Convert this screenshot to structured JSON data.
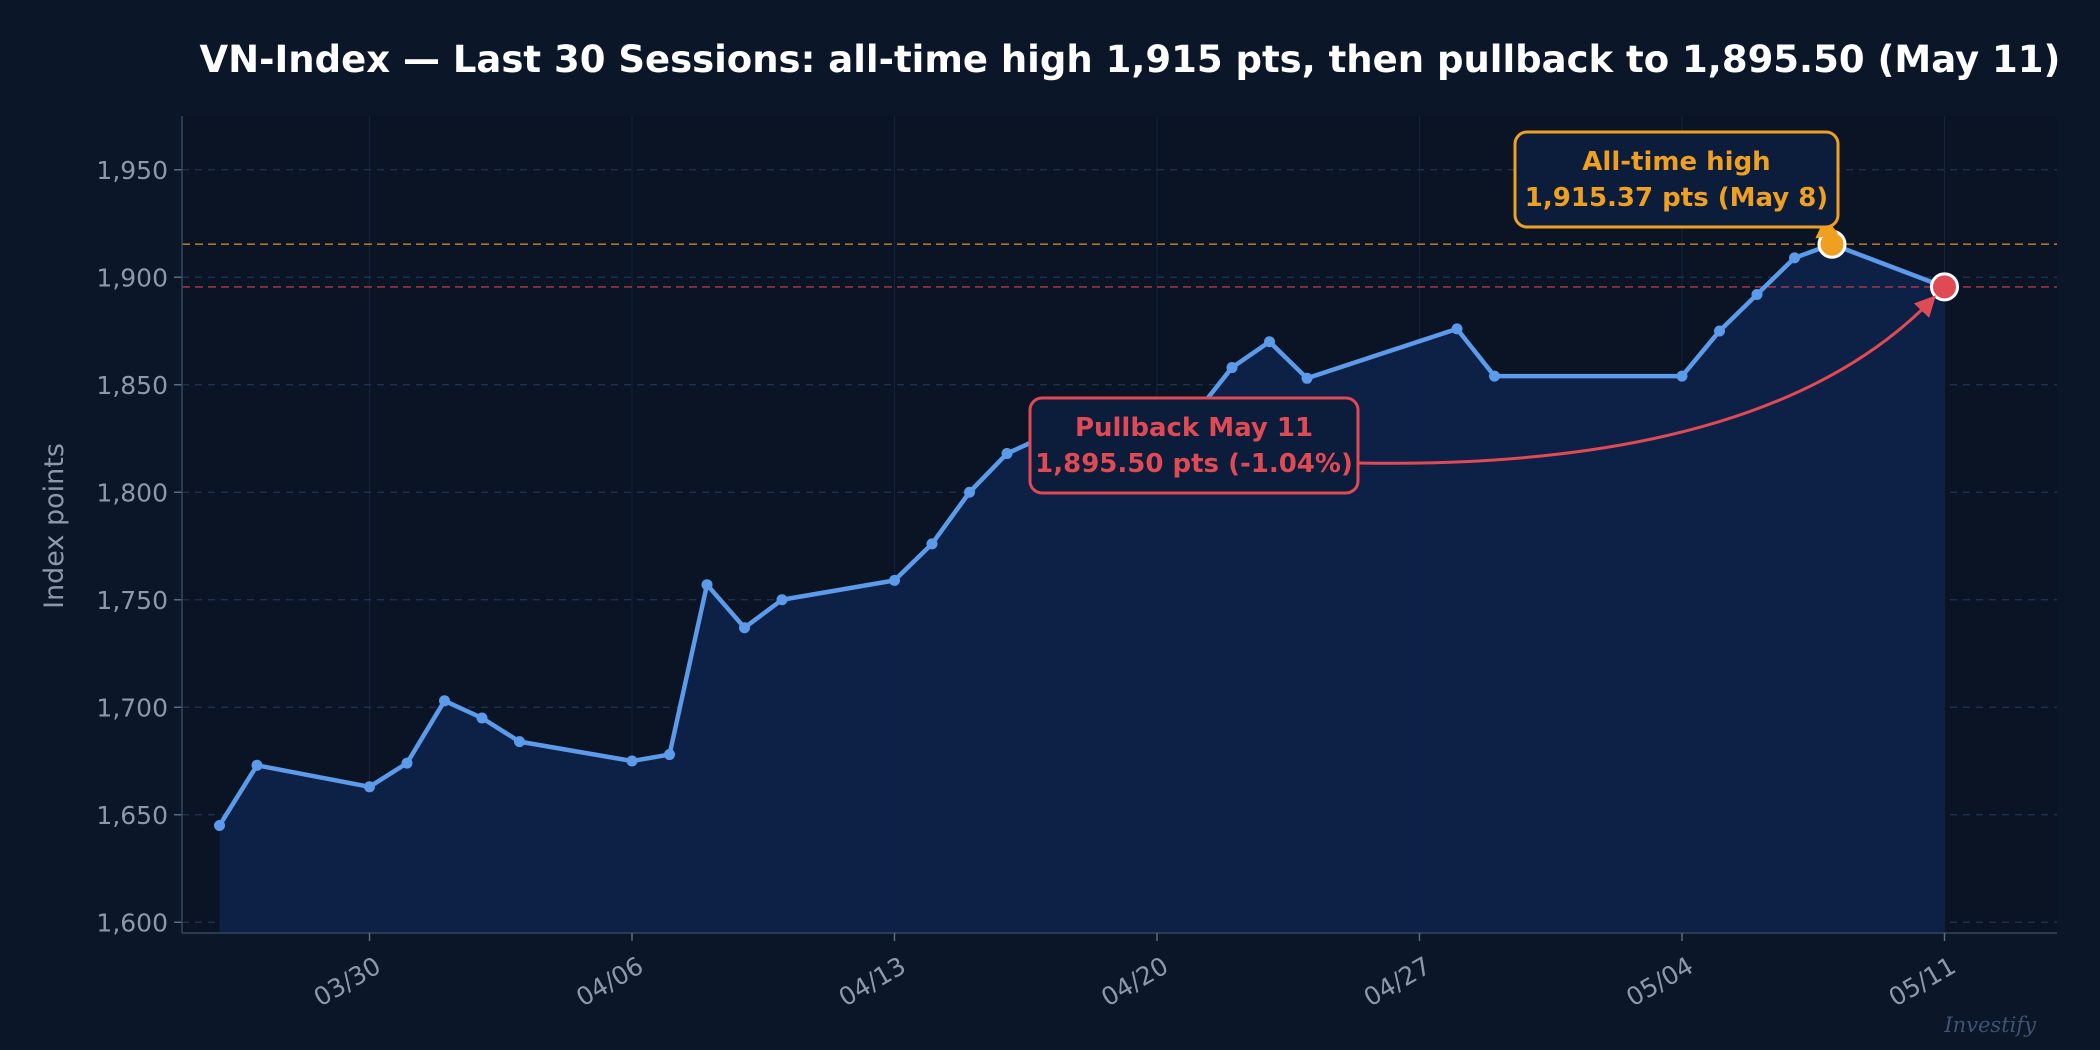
{
  "chart_data": {
    "type": "line",
    "title": "VN-Index — Last 30 Sessions: all-time high 1,915 pts, then pullback to 1,895.50 (May 11)",
    "ylabel": "Index points",
    "xlabel": "",
    "ylim": [
      1595,
      1975
    ],
    "yticks": [
      1600,
      1650,
      1700,
      1750,
      1800,
      1850,
      1900,
      1950
    ],
    "ytick_labels": [
      "1,600",
      "1,650",
      "1,700",
      "1,750",
      "1,800",
      "1,850",
      "1,900",
      "1,950"
    ],
    "xlim": [
      "2026-03-25",
      "2026-05-14"
    ],
    "xticks": [
      "2026-03-30",
      "2026-04-06",
      "2026-04-13",
      "2026-04-20",
      "2026-04-27",
      "2026-05-04",
      "2026-05-11"
    ],
    "xtick_labels": [
      "03/30",
      "04/06",
      "04/13",
      "04/20",
      "04/27",
      "05/04",
      "05/11"
    ],
    "grid": true,
    "area_fill": true,
    "x": [
      "2026-03-26",
      "2026-03-27",
      "2026-03-30",
      "2026-03-31",
      "2026-04-01",
      "2026-04-02",
      "2026-04-03",
      "2026-04-06",
      "2026-04-07",
      "2026-04-08",
      "2026-04-09",
      "2026-04-10",
      "2026-04-13",
      "2026-04-14",
      "2026-04-15",
      "2026-04-16",
      "2026-04-17",
      "2026-04-20",
      "2026-04-21",
      "2026-04-22",
      "2026-04-23",
      "2026-04-24",
      "2026-04-28",
      "2026-04-29",
      "2026-05-04",
      "2026-05-05",
      "2026-05-06",
      "2026-05-07",
      "2026-05-08",
      "2026-05-11"
    ],
    "series": [
      {
        "values": [
          1645,
          1673,
          1663,
          1674,
          1703,
          1695,
          1684,
          1675,
          1678,
          1757,
          1737,
          1750,
          1759,
          1776,
          1800,
          1818,
          1826,
          1828,
          1836,
          1858,
          1870,
          1853,
          1876,
          1854,
          1854,
          1875,
          1892,
          1909,
          1915.37,
          1895.5
        ],
        "color": "#5b9bea"
      }
    ],
    "reference_lines": [
      {
        "value": 1915.37,
        "color": "#c9852a"
      },
      {
        "value": 1895.5,
        "color": "#b23a48"
      }
    ],
    "annotations": [
      {
        "line1": "All-time high",
        "line2": "1,915.37 pts  (May 8)",
        "target_x": "2026-05-08",
        "target_y": 1915.37,
        "color": "#f0a020"
      },
      {
        "line1": "Pullback May 11",
        "line2": "1,895.50 pts  (-1.04%)",
        "target_x": "2026-05-11",
        "target_y": 1895.5,
        "color": "#e04a55"
      }
    ],
    "colors": {
      "background": "#0b1628",
      "line": "#5b9bea",
      "area": "#0e2148",
      "grid": "#1f3556",
      "text": "#8c99ad",
      "high": "#f0a020",
      "pullback": "#e04a55"
    }
  },
  "watermark": "Investify"
}
